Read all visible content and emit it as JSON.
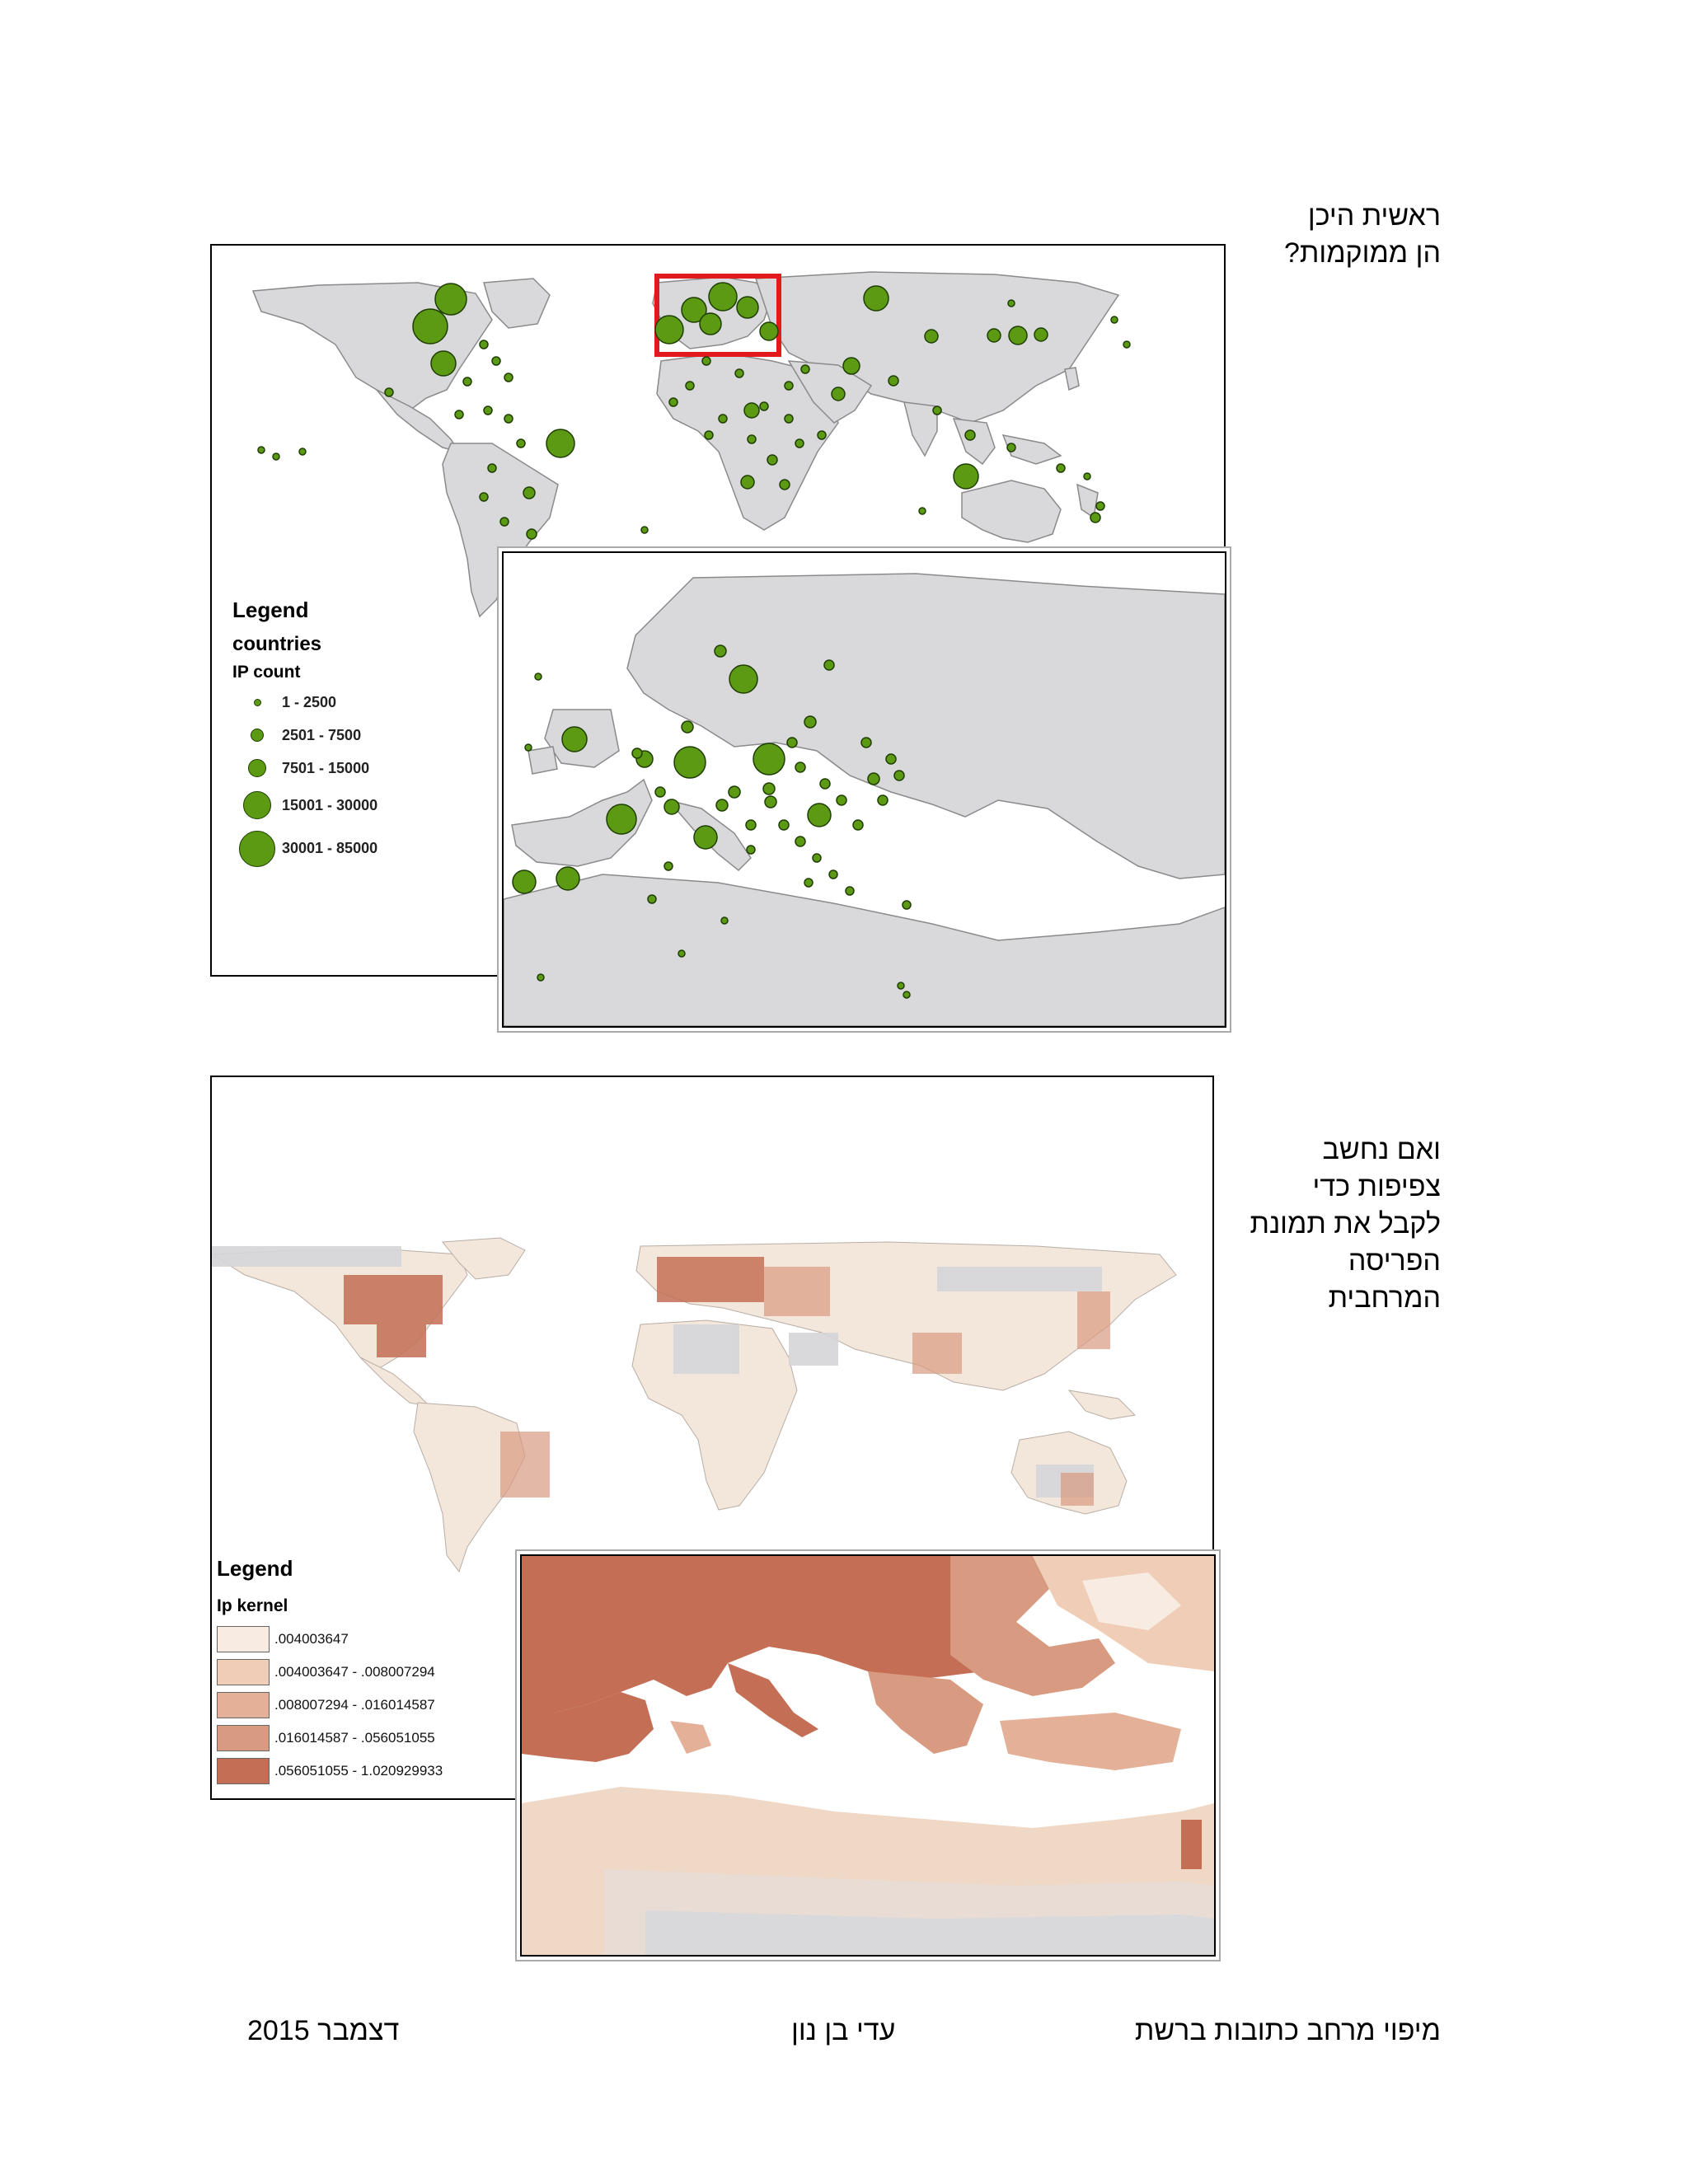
{
  "section1": {
    "lines": [
      "ראשית היכן",
      "הן ממוקמות?"
    ]
  },
  "section2": {
    "lines": [
      "ואם נחשב",
      "צפיפות כדי",
      "לקבל את תמונת",
      "הפריסה",
      "המרחבית"
    ]
  },
  "map1_legend": {
    "title": "Legend",
    "layer": "countries",
    "field": "IP count",
    "classes": [
      "1 - 2500",
      "2501 - 7500",
      "7501 - 15000",
      "15001 - 30000",
      "30001 - 85000"
    ]
  },
  "map2_legend": {
    "title": "Legend",
    "field": "Ip kernel",
    "classes": [
      ".004003647",
      ".004003647 - .008007294",
      ".008007294 - .016014587",
      ".016014587 - .056051055",
      ".056051055 - 1.020929933"
    ],
    "colors": [
      "#f8ece2",
      "#f0cdb7",
      "#e4b098",
      "#d89a80",
      "#c46e55"
    ]
  },
  "footer": {
    "right": "מיפוי מרחב כתובות ברשת",
    "center": "עדי בן נון",
    "left": "דצמבר 2015"
  }
}
